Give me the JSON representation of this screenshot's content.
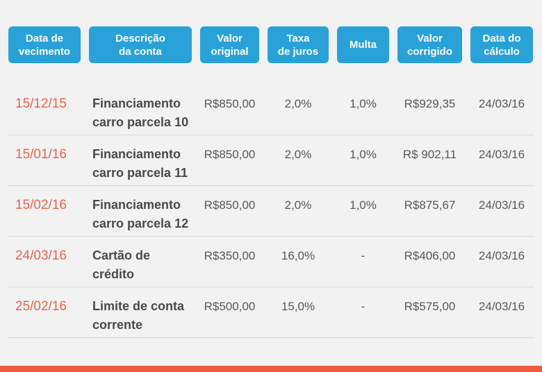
{
  "chart_data": {
    "type": "table",
    "title": "",
    "columns": [
      "Data de\nvecimento",
      "Descrição\nda conta",
      "Valor\noriginal",
      "Taxa\nde juros",
      "Multa",
      "Valor\ncorrigido",
      "Data do\ncálculo"
    ],
    "rows": [
      {
        "due_date": "15/12/15",
        "description": "Financiamento\ncarro parcela 10",
        "original_value": "R$850,00",
        "interest_rate": "2,0%",
        "fine": "1,0%",
        "corrected_value": "R$929,35",
        "calc_date": "24/03/16"
      },
      {
        "due_date": "15/01/16",
        "description": "Financiamento\ncarro parcela 11",
        "original_value": "R$850,00",
        "interest_rate": "2,0%",
        "fine": "1,0%",
        "corrected_value": "R$ 902,11",
        "calc_date": "24/03/16"
      },
      {
        "due_date": "15/02/16",
        "description": "Financiamento\ncarro parcela 12",
        "original_value": "R$850,00",
        "interest_rate": "2,0%",
        "fine": "1,0%",
        "corrected_value": "R$875,67",
        "calc_date": "24/03/16"
      },
      {
        "due_date": "24/03/16",
        "description": "Cartão de\ncrédito",
        "original_value": "R$350,00",
        "interest_rate": "16,0%",
        "fine": "-",
        "corrected_value": "R$406,00",
        "calc_date": "24/03/16"
      },
      {
        "due_date": "25/02/16",
        "description": "Limite de conta\ncorrente",
        "original_value": "R$500,00",
        "interest_rate": "15,0%",
        "fine": "-",
        "corrected_value": "R$575,00",
        "calc_date": "24/03/16"
      }
    ],
    "layout": {
      "legend": "none",
      "grid": "horizontal-row-dividers"
    }
  },
  "colors": {
    "header_pill_blue": "#29a2da",
    "due_date_orange": "#eb614c",
    "bottom_bar_orange": "#f15b40",
    "background_gray": "#f2f2f2",
    "text_dark": "#4a4a4c",
    "text_gray": "#58585a",
    "divider_gray": "#d7d7d7"
  }
}
